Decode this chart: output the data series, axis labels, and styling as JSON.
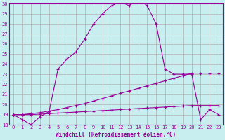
{
  "xlabel": "Windchill (Refroidissement éolien,°C)",
  "bg_color": "#c8eef0",
  "line_color": "#990099",
  "grid_color": "#b0b0b0",
  "ylim": [
    18,
    30
  ],
  "xlim": [
    -0.5,
    23.5
  ],
  "yticks": [
    18,
    19,
    20,
    21,
    22,
    23,
    24,
    25,
    26,
    27,
    28,
    29,
    30
  ],
  "xticks": [
    0,
    1,
    2,
    3,
    4,
    5,
    6,
    7,
    8,
    9,
    10,
    11,
    12,
    13,
    14,
    15,
    16,
    17,
    18,
    19,
    20,
    21,
    22,
    23
  ],
  "curve1_x": [
    0,
    1,
    2,
    3,
    4,
    5,
    6,
    7,
    8,
    9,
    10,
    11,
    12,
    13,
    14,
    15,
    16,
    17,
    18,
    19,
    20,
    21,
    22,
    23
  ],
  "curve1_y": [
    19.0,
    18.5,
    18.0,
    18.8,
    19.3,
    23.5,
    24.5,
    25.2,
    26.5,
    28.0,
    29.0,
    29.8,
    30.2,
    29.8,
    30.5,
    29.8,
    28.0,
    23.5,
    23.0,
    23.0,
    23.0,
    18.5,
    19.5,
    19.0
  ],
  "curve2_x": [
    0,
    1,
    2,
    3,
    4,
    5,
    6,
    7,
    8,
    9,
    10,
    11,
    12,
    13,
    14,
    15,
    16,
    17,
    18,
    19,
    20,
    21,
    22,
    23
  ],
  "curve2_y": [
    19.0,
    19.0,
    19.1,
    19.2,
    19.35,
    19.5,
    19.7,
    19.9,
    20.1,
    20.35,
    20.6,
    20.85,
    21.1,
    21.35,
    21.6,
    21.85,
    22.1,
    22.35,
    22.6,
    22.85,
    23.1,
    23.1,
    23.1,
    23.1
  ],
  "curve3_x": [
    0,
    1,
    2,
    3,
    4,
    5,
    6,
    7,
    8,
    9,
    10,
    11,
    12,
    13,
    14,
    15,
    16,
    17,
    18,
    19,
    20,
    21,
    22,
    23
  ],
  "curve3_y": [
    19.0,
    19.0,
    19.0,
    19.05,
    19.1,
    19.15,
    19.2,
    19.25,
    19.3,
    19.35,
    19.4,
    19.45,
    19.5,
    19.55,
    19.6,
    19.65,
    19.7,
    19.75,
    19.8,
    19.85,
    19.9,
    19.9,
    19.9,
    19.9
  ]
}
